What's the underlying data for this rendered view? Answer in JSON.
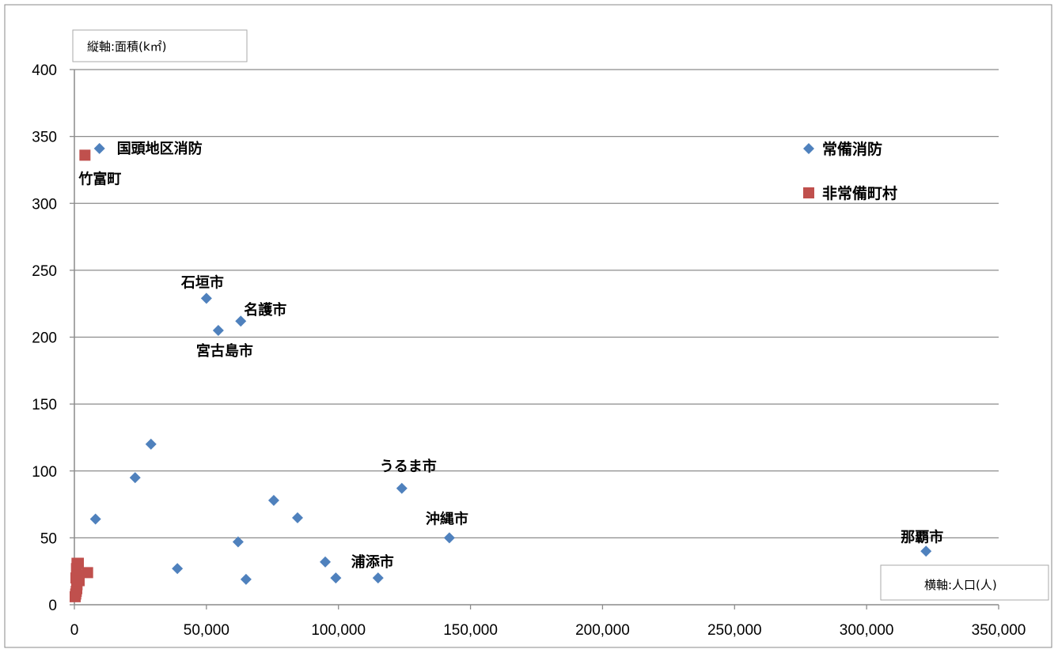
{
  "chart_data": {
    "type": "scatter",
    "ylabel": "縦軸:面積(k㎡)",
    "xlabel": "横軸:人口(人)",
    "xlim": [
      0,
      350000
    ],
    "ylim": [
      0,
      400
    ],
    "x_ticks": [
      "0",
      "50,000",
      "100,000",
      "150,000",
      "200,000",
      "250,000",
      "300,000",
      "350,000"
    ],
    "y_ticks": [
      "0",
      "50",
      "100",
      "150",
      "200",
      "250",
      "300",
      "350",
      "400"
    ],
    "grid": "horizontal",
    "legend": "top-right",
    "series": [
      {
        "name": "常備消防",
        "marker": "diamond",
        "color": "#4f81bd",
        "points": [
          {
            "x": 9500,
            "y": 341,
            "label": "国頭地区消防"
          },
          {
            "x": 50000,
            "y": 229,
            "label": "石垣市"
          },
          {
            "x": 63000,
            "y": 212,
            "label": "名護市"
          },
          {
            "x": 54500,
            "y": 205,
            "label": "宮古島市"
          },
          {
            "x": 29000,
            "y": 120
          },
          {
            "x": 23000,
            "y": 95
          },
          {
            "x": 8000,
            "y": 64
          },
          {
            "x": 39000,
            "y": 27
          },
          {
            "x": 62000,
            "y": 47
          },
          {
            "x": 65000,
            "y": 19
          },
          {
            "x": 75500,
            "y": 78
          },
          {
            "x": 84500,
            "y": 65
          },
          {
            "x": 95000,
            "y": 32
          },
          {
            "x": 99000,
            "y": 20
          },
          {
            "x": 115000,
            "y": 20,
            "label": "浦添市"
          },
          {
            "x": 124000,
            "y": 87,
            "label": "うるま市"
          },
          {
            "x": 142000,
            "y": 50,
            "label": "沖縄市"
          },
          {
            "x": 322500,
            "y": 40,
            "label": "那覇市"
          }
        ]
      },
      {
        "name": "非常備町村",
        "marker": "square",
        "color": "#c0504d",
        "points": [
          {
            "x": 4000,
            "y": 336,
            "label": "竹富町"
          },
          {
            "x": 5000,
            "y": 24
          },
          {
            "x": 1000,
            "y": 31
          },
          {
            "x": 1500,
            "y": 31
          },
          {
            "x": 800,
            "y": 27
          },
          {
            "x": 1200,
            "y": 22
          },
          {
            "x": 600,
            "y": 20
          },
          {
            "x": 1800,
            "y": 18
          },
          {
            "x": 1000,
            "y": 15
          },
          {
            "x": 900,
            "y": 12
          },
          {
            "x": 700,
            "y": 10
          },
          {
            "x": 500,
            "y": 8
          },
          {
            "x": 300,
            "y": 6
          }
        ]
      }
    ]
  }
}
